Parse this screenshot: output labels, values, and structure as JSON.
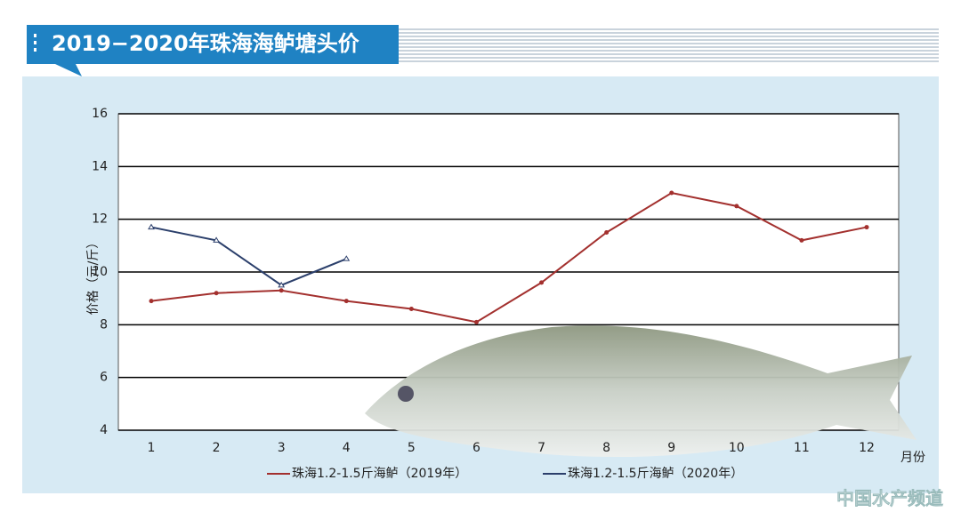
{
  "chart_data": {
    "type": "line",
    "title": "2019−2020年珠海海鲈塘头价",
    "y_label": "价格（元/斤）",
    "x_label": "月份",
    "categories": [
      "1",
      "2",
      "3",
      "4",
      "5",
      "6",
      "7",
      "8",
      "9",
      "10",
      "11",
      "12"
    ],
    "series": [
      {
        "name": "珠海1.2-1.5斤海鲈（2019年）",
        "color": "#a3302e",
        "marker": "dot",
        "values": [
          8.9,
          9.2,
          9.3,
          8.9,
          8.6,
          8.1,
          9.6,
          11.5,
          13.0,
          12.5,
          11.2,
          11.7
        ]
      },
      {
        "name": "珠海1.2-1.5斤海鲈（2020年）",
        "color": "#2b3f6b",
        "marker": "triangle",
        "values": [
          11.7,
          11.2,
          9.5,
          10.5,
          null,
          null,
          null,
          null,
          null,
          null,
          null,
          null
        ]
      }
    ],
    "ylim": [
      4,
      16
    ],
    "yticks": [
      4,
      6,
      8,
      10,
      12,
      14,
      16
    ],
    "grid": true
  },
  "watermark": "中国水产频道"
}
